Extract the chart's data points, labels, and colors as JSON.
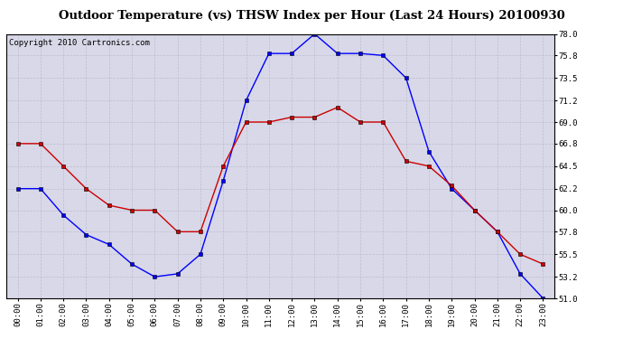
{
  "title": "Outdoor Temperature (vs) THSW Index per Hour (Last 24 Hours) 20100930",
  "copyright": "Copyright 2010 Cartronics.com",
  "hours": [
    "00:00",
    "01:00",
    "02:00",
    "03:00",
    "04:00",
    "05:00",
    "06:00",
    "07:00",
    "08:00",
    "09:00",
    "10:00",
    "11:00",
    "12:00",
    "13:00",
    "14:00",
    "15:00",
    "16:00",
    "17:00",
    "18:00",
    "19:00",
    "20:00",
    "21:00",
    "22:00",
    "23:00"
  ],
  "blue_data": [
    62.2,
    62.2,
    59.5,
    57.5,
    56.5,
    54.5,
    53.2,
    53.5,
    55.5,
    63.0,
    71.2,
    76.0,
    76.0,
    78.0,
    76.0,
    76.0,
    75.8,
    73.5,
    66.0,
    62.2,
    60.0,
    57.8,
    53.5,
    51.0
  ],
  "red_data": [
    66.8,
    66.8,
    64.5,
    62.2,
    60.5,
    60.0,
    60.0,
    57.8,
    57.8,
    64.5,
    69.0,
    69.0,
    69.5,
    69.5,
    70.5,
    69.0,
    69.0,
    65.0,
    64.5,
    62.5,
    60.0,
    57.8,
    55.5,
    54.5
  ],
  "ylim": [
    51.0,
    78.0
  ],
  "yticks": [
    51.0,
    53.2,
    55.5,
    57.8,
    60.0,
    62.2,
    64.5,
    66.8,
    69.0,
    71.2,
    73.5,
    75.8,
    78.0
  ],
  "blue_color": "#0000FF",
  "red_color": "#CC0000",
  "bg_color": "#FFFFFF",
  "plot_bg_color": "#D8D8E8",
  "grid_color": "#BBBBCC",
  "title_color": "#000000",
  "copyright_color": "#000000",
  "title_fontsize": 9.5,
  "copyright_fontsize": 6.5,
  "tick_fontsize": 6.5,
  "marker": "s",
  "marker_size": 2.5,
  "line_width": 1.0
}
